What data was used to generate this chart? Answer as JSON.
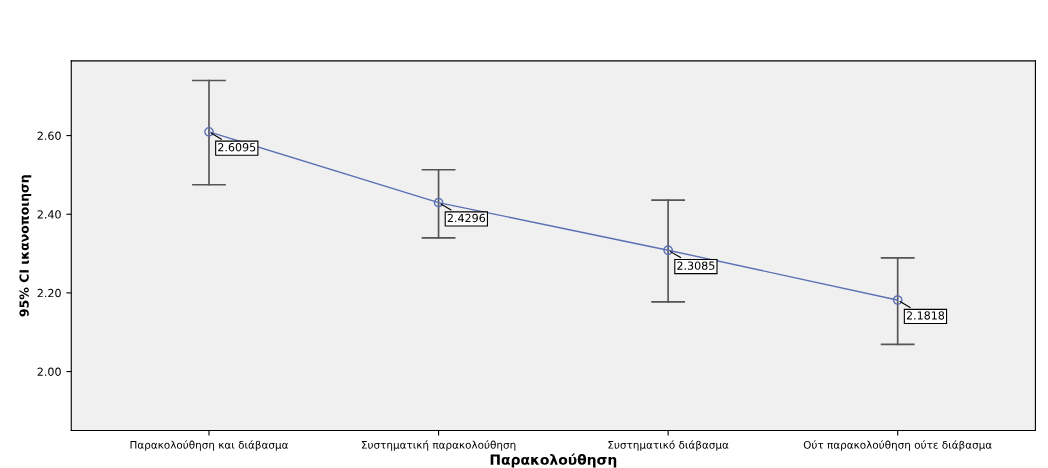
{
  "chart_data": {
    "type": "line",
    "xlabel": "Παρακολούθηση",
    "ylabel": "95% CI ικανοποιηση",
    "categories": [
      "Παρακολούθηση και διάβασμα",
      "Συστηματική παρακολούθηση",
      "Συστηματικό διάβασμα",
      "Ούτ παρακολούθηση ούτε διάβασμα"
    ],
    "series": [
      {
        "color": "#5b6fb5",
        "values": [
          2.6095,
          2.4296,
          2.3085,
          2.1818
        ],
        "errors": [
          [
            2.475,
            2.74
          ],
          [
            2.34,
            2.513
          ],
          [
            2.177,
            2.436
          ],
          [
            2.069,
            2.289
          ]
        ]
      }
    ],
    "ylim": [
      1.85,
      2.79
    ],
    "yticks": [
      {
        "value": 2.0,
        "label": "2.00"
      },
      {
        "value": 2.2,
        "label": "2.20"
      },
      {
        "value": 2.4,
        "label": "2.40"
      },
      {
        "value": 2.6,
        "label": "2.60"
      }
    ],
    "grid": false,
    "legend": false,
    "marker": "circle",
    "line_style": "solid",
    "data_labels": true
  }
}
